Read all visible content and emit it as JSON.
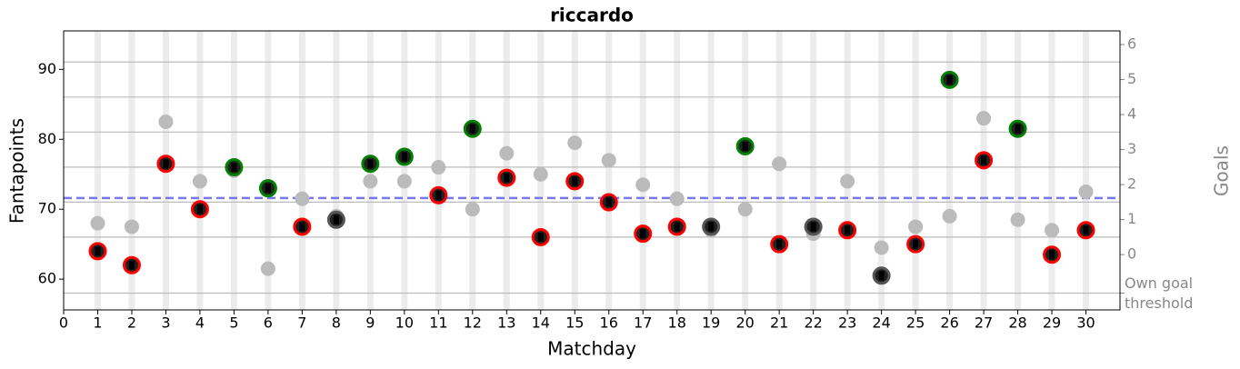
{
  "chart_data": {
    "type": "scatter",
    "title": "riccardo",
    "xlabel": "Matchday",
    "ylabel": "Fantapoints",
    "y2label": "Goals",
    "x": [
      1,
      2,
      3,
      4,
      5,
      6,
      7,
      8,
      9,
      10,
      11,
      12,
      13,
      14,
      15,
      16,
      17,
      18,
      19,
      20,
      21,
      22,
      23,
      24,
      25,
      26,
      27,
      28,
      29,
      30
    ],
    "series": [
      {
        "color": "#bbbbbb",
        "values": [
          68,
          67.5,
          82.5,
          74,
          75.5,
          61.5,
          71.5,
          69,
          74,
          74,
          76,
          70,
          78,
          75,
          79.5,
          77,
          73.5,
          71.5,
          67,
          70,
          76.5,
          66.5,
          74,
          64.5,
          67.5,
          69,
          83,
          68.5,
          67,
          72.5
        ]
      },
      {
        "color": "#222222",
        "values": [
          64,
          62,
          76.5,
          70,
          76,
          73,
          67.5,
          68.5,
          76.5,
          77.5,
          72,
          81.5,
          74.5,
          66,
          74,
          71,
          66.5,
          67.5,
          67.5,
          79,
          65,
          67.5,
          67,
          60.5,
          65,
          88.5,
          77,
          81.5,
          63.5,
          67
        ],
        "edge_colors": [
          "red",
          "red",
          "red",
          "red",
          "green",
          "green",
          "red",
          "#555555",
          "green",
          "green",
          "red",
          "green",
          "red",
          "red",
          "red",
          "red",
          "red",
          "red",
          "#555555",
          "green",
          "red",
          "#555555",
          "red",
          "#555555",
          "red",
          "green",
          "red",
          "green",
          "red",
          "red"
        ]
      }
    ],
    "mean": 71.6,
    "mean_color": "#7777ee",
    "xlim": [
      0,
      31
    ],
    "xticks": [
      0,
      1,
      2,
      3,
      4,
      5,
      6,
      7,
      8,
      9,
      10,
      11,
      12,
      13,
      14,
      15,
      16,
      17,
      18,
      19,
      20,
      21,
      22,
      23,
      24,
      25,
      26,
      27,
      28,
      29,
      30
    ],
    "ylim": [
      55.6,
      95.5
    ],
    "yticks": [
      60,
      70,
      80,
      90
    ],
    "y2lim": [
      -1.58,
      6.39
    ],
    "y2ticks": [
      {
        "value": -1.1,
        "label": "Own goal threshold"
      },
      0,
      1,
      2,
      3,
      4,
      5,
      6
    ],
    "y2grid": [
      0.5,
      1.5,
      2.5,
      3.5,
      4.5,
      5.5
    ]
  }
}
